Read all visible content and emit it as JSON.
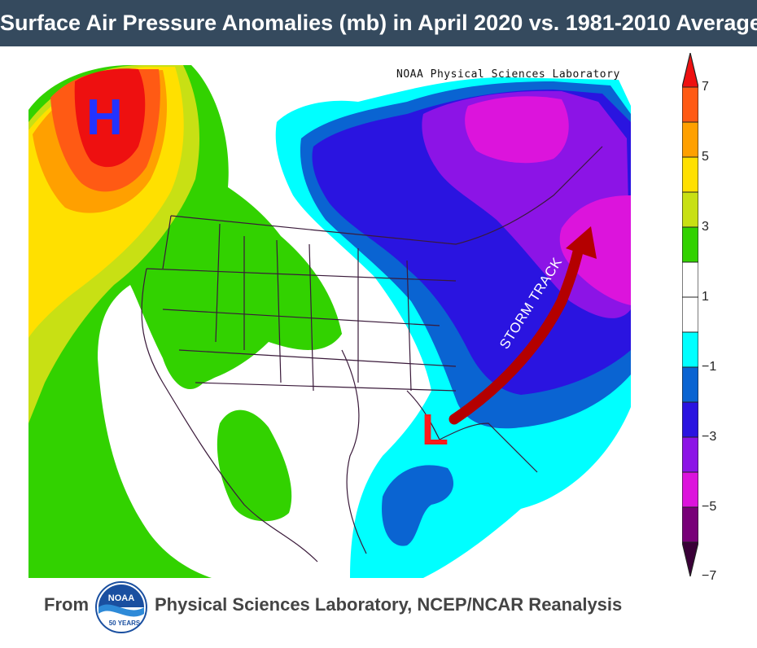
{
  "title": "Surface Air Pressure Anomalies (mb) in April 2020 vs. 1981-2010 Average",
  "map": {
    "credit": "NOAA Physical Sciences Laboratory",
    "high_label": "H",
    "low_label": "L",
    "storm_track_label": "STORM TRACK",
    "high_color": "#2233ff",
    "low_color": "#ff1a1a",
    "arrow_color": "#b40000"
  },
  "colorbar": {
    "labels": [
      "7",
      "5",
      "3",
      "1",
      "−1",
      "−3",
      "−5",
      "−7"
    ],
    "colors": [
      "#ee1010",
      "#ff5a14",
      "#ffa000",
      "#ffe000",
      "#c8e014",
      "#32d200",
      "#ffffff",
      "#ffffff",
      "#00ffff",
      "#0a64d2",
      "#2a14e0",
      "#8c14e6",
      "#dc14dc",
      "#780078"
    ]
  },
  "footer": {
    "from": "From",
    "source": "Physical Sciences Laboratory, NCEP/NCAR Reanalysis",
    "logo_text": "NOAA",
    "logo_sub": "50 YEARS"
  }
}
